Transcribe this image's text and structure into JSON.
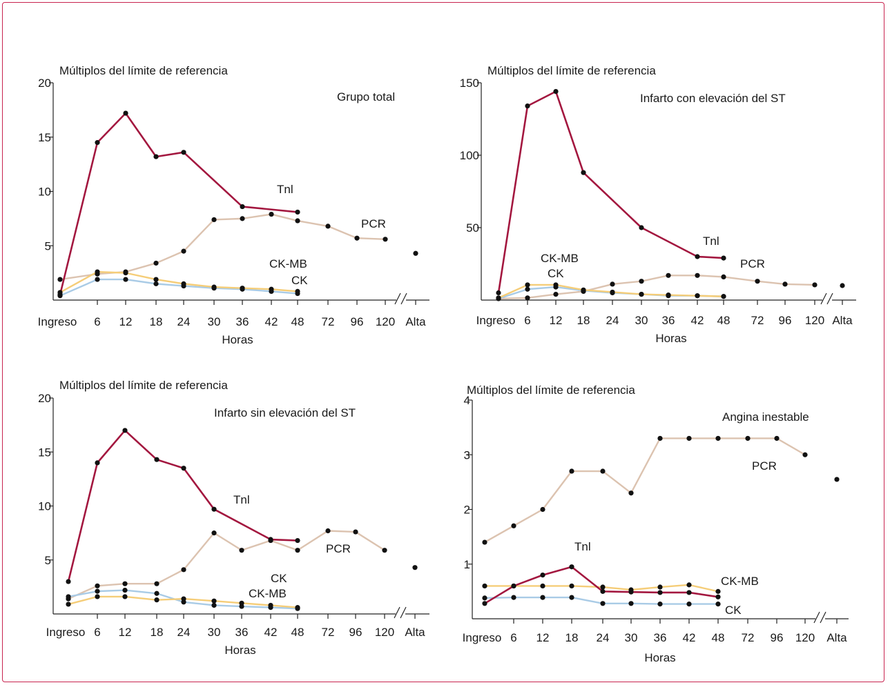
{
  "colors": {
    "TnI": "#a3173f",
    "PCR": "#dcc3b0",
    "CK-MB": "#f5cd78",
    "CK": "#a9cbe6",
    "frame": "#c8234f"
  },
  "chart_data": [
    {
      "type": "line",
      "title": "Grupo total",
      "ylabel": "Múltiplos del límite de referencia",
      "xlabel": "Horas",
      "categories": [
        "Ingreso",
        "6",
        "12",
        "18",
        "24",
        "30",
        "36",
        "42",
        "48",
        "72",
        "96",
        "120",
        "Alta"
      ],
      "ylim": [
        0,
        20
      ],
      "yticks": [
        5,
        10,
        15,
        20
      ],
      "axis_break_after": "120",
      "series": [
        {
          "name": "TnI",
          "label": "Tnl",
          "x": [
            "Ingreso",
            "6",
            "12",
            "18",
            "24",
            "36",
            "48"
          ],
          "values": [
            0.5,
            14.5,
            17.2,
            13.2,
            13.6,
            8.6,
            8.1
          ]
        },
        {
          "name": "PCR",
          "label": "PCR",
          "x": [
            "Ingreso",
            "6",
            "12",
            "18",
            "24",
            "30",
            "36",
            "42",
            "48",
            "72",
            "96",
            "120"
          ],
          "values": [
            1.9,
            2.4,
            2.6,
            3.4,
            4.5,
            7.4,
            7.5,
            7.9,
            7.3,
            6.8,
            5.7,
            5.6
          ]
        },
        {
          "name": "CK-MB",
          "label": "CK-MB",
          "x": [
            "Ingreso",
            "6",
            "12",
            "18",
            "24",
            "30",
            "36",
            "42",
            "48"
          ],
          "values": [
            0.7,
            2.6,
            2.5,
            1.9,
            1.5,
            1.2,
            1.1,
            1.0,
            0.8
          ]
        },
        {
          "name": "CK",
          "label": "CK",
          "x": [
            "Ingreso",
            "6",
            "12",
            "18",
            "24",
            "30",
            "36",
            "42",
            "48"
          ],
          "values": [
            0.4,
            1.9,
            1.9,
            1.5,
            1.3,
            1.1,
            1.0,
            0.8,
            0.6
          ]
        }
      ],
      "discharge_point": {
        "x": "Alta",
        "value": 4.3
      }
    },
    {
      "type": "line",
      "title": "Infarto con elevación del ST",
      "ylabel": "Múltiplos del límite de referencia",
      "xlabel": "Horas",
      "categories": [
        "Ingreso",
        "6",
        "12",
        "18",
        "24",
        "30",
        "36",
        "42",
        "48",
        "72",
        "96",
        "120",
        "Alta"
      ],
      "ylim": [
        0,
        150
      ],
      "yticks": [
        50,
        100,
        150
      ],
      "axis_break_after": "120",
      "series": [
        {
          "name": "TnI",
          "label": "Tnl",
          "x": [
            "Ingreso",
            "6",
            "12",
            "18",
            "30",
            "42",
            "48"
          ],
          "values": [
            5,
            134,
            144,
            88,
            50,
            30,
            29
          ]
        },
        {
          "name": "PCR",
          "label": "PCR",
          "x": [
            "Ingreso",
            "6",
            "12",
            "18",
            "24",
            "30",
            "36",
            "42",
            "48",
            "72",
            "96",
            "120"
          ],
          "values": [
            1,
            1.5,
            4,
            6,
            11,
            13,
            17,
            17,
            16,
            13,
            11,
            10.5
          ]
        },
        {
          "name": "CK-MB",
          "label": "CK-MB",
          "x": [
            "Ingreso",
            "6",
            "12",
            "18",
            "24",
            "30",
            "36",
            "42",
            "48"
          ],
          "values": [
            1.5,
            10.5,
            10.5,
            7,
            5.5,
            4,
            3.5,
            3,
            2.5
          ]
        },
        {
          "name": "CK",
          "label": "CK",
          "x": [
            "Ingreso",
            "6",
            "12",
            "18",
            "24",
            "30",
            "36",
            "42",
            "48"
          ],
          "values": [
            1,
            7.5,
            9,
            6.5,
            5,
            4,
            3,
            3,
            2.5
          ]
        }
      ],
      "discharge_point": {
        "x": "Alta",
        "value": 10
      }
    },
    {
      "type": "line",
      "title": "Infarto sin elevación del ST",
      "ylabel": "Múltiplos del límite de referencia",
      "xlabel": "Horas",
      "categories": [
        "Ingreso",
        "6",
        "12",
        "18",
        "24",
        "30",
        "36",
        "42",
        "48",
        "72",
        "96",
        "120",
        "Alta"
      ],
      "ylim": [
        0,
        20
      ],
      "yticks": [
        5,
        10,
        15,
        20
      ],
      "axis_break_after": "120",
      "series": [
        {
          "name": "TnI",
          "label": "Tnl",
          "x": [
            "Ingreso",
            "6",
            "12",
            "18",
            "24",
            "30",
            "42",
            "48"
          ],
          "values": [
            3.0,
            14.0,
            17.0,
            14.3,
            13.5,
            9.7,
            6.9,
            6.8
          ]
        },
        {
          "name": "PCR",
          "label": "PCR",
          "x": [
            "Ingreso",
            "6",
            "12",
            "18",
            "24",
            "30",
            "36",
            "42",
            "48",
            "72",
            "96",
            "120"
          ],
          "values": [
            1.4,
            2.6,
            2.8,
            2.8,
            4.1,
            7.5,
            5.9,
            6.8,
            5.9,
            7.7,
            7.6,
            5.9
          ]
        },
        {
          "name": "CK",
          "label": "CK",
          "x": [
            "Ingreso",
            "6",
            "12",
            "18",
            "24",
            "30",
            "36",
            "42",
            "48"
          ],
          "values": [
            1.6,
            2.1,
            2.2,
            1.9,
            1.1,
            0.8,
            0.7,
            0.6,
            0.5
          ]
        },
        {
          "name": "CK-MB",
          "label": "CK-MB",
          "x": [
            "Ingreso",
            "6",
            "12",
            "18",
            "24",
            "30",
            "36",
            "42",
            "48"
          ],
          "values": [
            0.9,
            1.6,
            1.6,
            1.3,
            1.4,
            1.2,
            1.0,
            0.8,
            0.6
          ]
        }
      ],
      "discharge_point": {
        "x": "Alta",
        "value": 4.3
      }
    },
    {
      "type": "line",
      "title": "Angina inestable",
      "ylabel": "Múltiplos del límite de referencia",
      "xlabel": "Horas",
      "categories": [
        "Ingreso",
        "6",
        "12",
        "18",
        "24",
        "30",
        "36",
        "42",
        "48",
        "72",
        "96",
        "120",
        "Alta"
      ],
      "ylim": [
        0,
        4
      ],
      "yticks": [
        1,
        2,
        3,
        4
      ],
      "axis_break_after": "120",
      "series": [
        {
          "name": "PCR",
          "label": "PCR",
          "x": [
            "Ingreso",
            "6",
            "12",
            "18",
            "24",
            "30",
            "36",
            "42",
            "48",
            "72",
            "96",
            "120"
          ],
          "values": [
            1.4,
            1.7,
            2.0,
            2.7,
            2.7,
            2.3,
            3.3,
            3.3,
            3.3,
            3.3,
            3.3,
            3.0
          ]
        },
        {
          "name": "TnI",
          "label": "Tnl",
          "x": [
            "Ingreso",
            "6",
            "12",
            "18",
            "24",
            "30",
            "36",
            "42",
            "48"
          ],
          "values": [
            0.28,
            0.6,
            0.8,
            0.95,
            0.5,
            0.49,
            0.48,
            0.48,
            0.4
          ]
        },
        {
          "name": "CK-MB",
          "label": "CK-MB",
          "x": [
            "Ingreso",
            "6",
            "12",
            "18",
            "24",
            "30",
            "36",
            "42",
            "48"
          ],
          "values": [
            0.6,
            0.6,
            0.6,
            0.6,
            0.58,
            0.53,
            0.58,
            0.62,
            0.5
          ]
        },
        {
          "name": "CK",
          "label": "CK",
          "x": [
            "Ingreso",
            "6",
            "12",
            "18",
            "24",
            "30",
            "36",
            "42",
            "48"
          ],
          "values": [
            0.38,
            0.39,
            0.39,
            0.39,
            0.28,
            0.28,
            0.27,
            0.27,
            0.27
          ]
        }
      ],
      "discharge_point": {
        "x": "Alta",
        "value": 2.55
      }
    }
  ]
}
